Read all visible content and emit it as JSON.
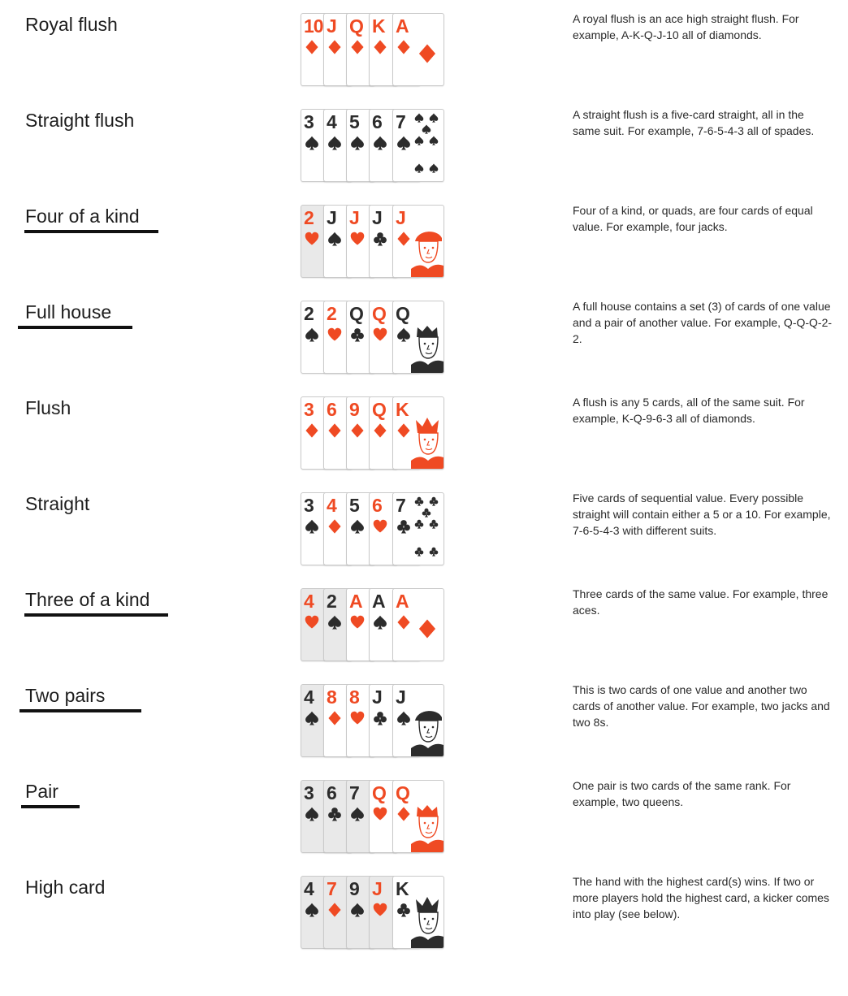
{
  "hands": [
    {
      "name": "Royal flush",
      "underlined": false,
      "description": "A royal flush is an ace high straight flush. For example, A-K-Q-J-10 all of diamonds.",
      "cards": [
        {
          "rank": "10",
          "suit": "diamond",
          "color": "red",
          "shaded": false
        },
        {
          "rank": "J",
          "suit": "diamond",
          "color": "red",
          "shaded": false
        },
        {
          "rank": "Q",
          "suit": "diamond",
          "color": "red",
          "shaded": false
        },
        {
          "rank": "K",
          "suit": "diamond",
          "color": "red",
          "shaded": false
        },
        {
          "rank": "A",
          "suit": "diamond",
          "color": "red",
          "shaded": false,
          "art": "ace"
        }
      ]
    },
    {
      "name": "Straight flush",
      "underlined": false,
      "description": "A straight flush is a five-card straight, all in the same suit. For example, 7-6-5-4-3 all of spades.",
      "cards": [
        {
          "rank": "3",
          "suit": "spade",
          "color": "black",
          "shaded": false
        },
        {
          "rank": "4",
          "suit": "spade",
          "color": "black",
          "shaded": false
        },
        {
          "rank": "5",
          "suit": "spade",
          "color": "black",
          "shaded": false
        },
        {
          "rank": "6",
          "suit": "spade",
          "color": "black",
          "shaded": false
        },
        {
          "rank": "7",
          "suit": "spade",
          "color": "black",
          "shaded": false,
          "art": "pips"
        }
      ]
    },
    {
      "name": "Four of a kind",
      "underlined": true,
      "description": "Four of a kind, or quads, are four cards of equal value. For example, four jacks.",
      "cards": [
        {
          "rank": "2",
          "suit": "heart",
          "color": "red",
          "shaded": true
        },
        {
          "rank": "J",
          "suit": "spade",
          "color": "black",
          "shaded": false
        },
        {
          "rank": "J",
          "suit": "heart",
          "color": "red",
          "shaded": false
        },
        {
          "rank": "J",
          "suit": "club",
          "color": "black",
          "shaded": false
        },
        {
          "rank": "J",
          "suit": "diamond",
          "color": "red",
          "shaded": false,
          "art": "jack"
        }
      ]
    },
    {
      "name": "Full house",
      "underlined": true,
      "description": "A full house contains a set (3) of cards of one value and a pair of another value. For example, Q-Q-Q-2-2.",
      "cards": [
        {
          "rank": "2",
          "suit": "spade",
          "color": "black",
          "shaded": false
        },
        {
          "rank": "2",
          "suit": "heart",
          "color": "red",
          "shaded": false
        },
        {
          "rank": "Q",
          "suit": "club",
          "color": "black",
          "shaded": false
        },
        {
          "rank": "Q",
          "suit": "heart",
          "color": "red",
          "shaded": false
        },
        {
          "rank": "Q",
          "suit": "spade",
          "color": "black",
          "shaded": false,
          "art": "queen"
        }
      ]
    },
    {
      "name": "Flush",
      "underlined": false,
      "description": "A flush is any 5 cards, all of the same suit. For example, K-Q-9-6-3 all of diamonds.",
      "cards": [
        {
          "rank": "3",
          "suit": "diamond",
          "color": "red",
          "shaded": false
        },
        {
          "rank": "6",
          "suit": "diamond",
          "color": "red",
          "shaded": false
        },
        {
          "rank": "9",
          "suit": "diamond",
          "color": "red",
          "shaded": false
        },
        {
          "rank": "Q",
          "suit": "diamond",
          "color": "red",
          "shaded": false
        },
        {
          "rank": "K",
          "suit": "diamond",
          "color": "red",
          "shaded": false,
          "art": "king"
        }
      ]
    },
    {
      "name": "Straight",
      "underlined": false,
      "description": "Five cards of sequential value. Every possible straight will contain either a 5 or a 10. For example, 7-6-5-4-3 with different suits.",
      "cards": [
        {
          "rank": "3",
          "suit": "spade",
          "color": "black",
          "shaded": false
        },
        {
          "rank": "4",
          "suit": "diamond",
          "color": "red",
          "shaded": false
        },
        {
          "rank": "5",
          "suit": "spade",
          "color": "black",
          "shaded": false
        },
        {
          "rank": "6",
          "suit": "heart",
          "color": "red",
          "shaded": false
        },
        {
          "rank": "7",
          "suit": "club",
          "color": "black",
          "shaded": false,
          "art": "pips"
        }
      ]
    },
    {
      "name": "Three of a kind",
      "underlined": true,
      "description": "Three cards of the same value. For example, three aces.",
      "cards": [
        {
          "rank": "4",
          "suit": "heart",
          "color": "red",
          "shaded": true
        },
        {
          "rank": "2",
          "suit": "spade",
          "color": "black",
          "shaded": true
        },
        {
          "rank": "A",
          "suit": "heart",
          "color": "red",
          "shaded": false
        },
        {
          "rank": "A",
          "suit": "spade",
          "color": "black",
          "shaded": false
        },
        {
          "rank": "A",
          "suit": "diamond",
          "color": "red",
          "shaded": false,
          "art": "ace"
        }
      ]
    },
    {
      "name": "Two pairs",
      "underlined": true,
      "description": "This is two cards of one value and another two cards of another value. For example, two jacks and two 8s.",
      "cards": [
        {
          "rank": "4",
          "suit": "spade",
          "color": "black",
          "shaded": true
        },
        {
          "rank": "8",
          "suit": "diamond",
          "color": "red",
          "shaded": false
        },
        {
          "rank": "8",
          "suit": "heart",
          "color": "red",
          "shaded": false
        },
        {
          "rank": "J",
          "suit": "club",
          "color": "black",
          "shaded": false
        },
        {
          "rank": "J",
          "suit": "spade",
          "color": "black",
          "shaded": false,
          "art": "jack"
        }
      ]
    },
    {
      "name": "Pair",
      "underlined": true,
      "description": "One pair is two cards of the same rank. For example, two queens.",
      "cards": [
        {
          "rank": "3",
          "suit": "spade",
          "color": "black",
          "shaded": true
        },
        {
          "rank": "6",
          "suit": "club",
          "color": "black",
          "shaded": true
        },
        {
          "rank": "7",
          "suit": "spade",
          "color": "black",
          "shaded": true
        },
        {
          "rank": "Q",
          "suit": "heart",
          "color": "red",
          "shaded": false
        },
        {
          "rank": "Q",
          "suit": "diamond",
          "color": "red",
          "shaded": false,
          "art": "queen"
        }
      ]
    },
    {
      "name": "High card",
      "underlined": false,
      "description": "The hand with the highest card(s) wins. If two or more players hold the highest card, a kicker comes into play (see below).",
      "cards": [
        {
          "rank": "4",
          "suit": "spade",
          "color": "black",
          "shaded": true
        },
        {
          "rank": "7",
          "suit": "diamond",
          "color": "red",
          "shaded": true
        },
        {
          "rank": "9",
          "suit": "spade",
          "color": "black",
          "shaded": true
        },
        {
          "rank": "J",
          "suit": "heart",
          "color": "red",
          "shaded": true
        },
        {
          "rank": "K",
          "suit": "club",
          "color": "black",
          "shaded": false,
          "art": "king"
        }
      ]
    }
  ]
}
